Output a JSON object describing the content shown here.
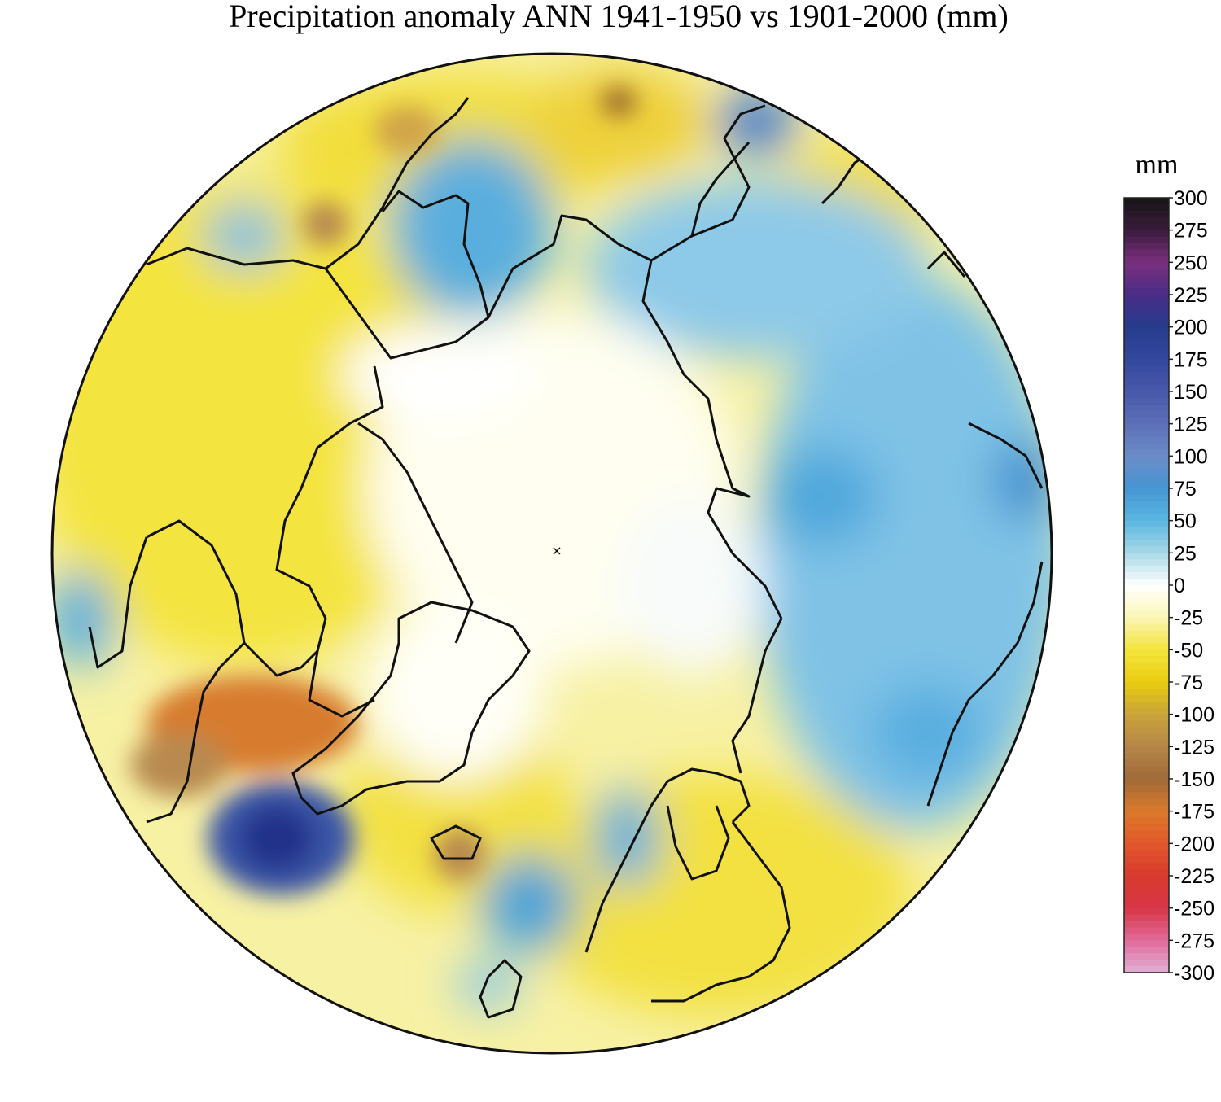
{
  "title": "Precipitation anomaly ANN 1941-1950 vs 1901-2000 (mm)",
  "colorbar": {
    "unit": "mm",
    "tick_labels": [
      "300",
      "275",
      "250",
      "225",
      "200",
      "175",
      "150",
      "125",
      "100",
      "75",
      "50",
      "25",
      "0",
      "-25",
      "-50",
      "-75",
      "-100",
      "-125",
      "-150",
      "-175",
      "-200",
      "-225",
      "-250",
      "-275",
      "-300"
    ],
    "stops": [
      {
        "v": 300,
        "c": "#151515"
      },
      {
        "v": 275,
        "c": "#3a1c3c"
      },
      {
        "v": 250,
        "c": "#7a2f7e"
      },
      {
        "v": 225,
        "c": "#4a2c86"
      },
      {
        "v": 200,
        "c": "#263c8c"
      },
      {
        "v": 175,
        "c": "#33479e"
      },
      {
        "v": 150,
        "c": "#4858aa"
      },
      {
        "v": 125,
        "c": "#5d6fb8"
      },
      {
        "v": 100,
        "c": "#6b8cc8"
      },
      {
        "v": 75,
        "c": "#4596d2"
      },
      {
        "v": 50,
        "c": "#5ab6e0"
      },
      {
        "v": 25,
        "c": "#a8d8e8"
      },
      {
        "v": 0,
        "c": "#ffffff"
      },
      {
        "v": -25,
        "c": "#fbf6b6"
      },
      {
        "v": -50,
        "c": "#f4e43c"
      },
      {
        "v": -75,
        "c": "#e8cc10"
      },
      {
        "v": -100,
        "c": "#c9a43a"
      },
      {
        "v": -125,
        "c": "#b58648"
      },
      {
        "v": -150,
        "c": "#a06a3a"
      },
      {
        "v": -175,
        "c": "#d97a2a"
      },
      {
        "v": -200,
        "c": "#e2582c"
      },
      {
        "v": -225,
        "c": "#d83a2e"
      },
      {
        "v": -250,
        "c": "#d83646"
      },
      {
        "v": -275,
        "c": "#e06a9a"
      },
      {
        "v": -300,
        "c": "#e2b0d4"
      }
    ]
  },
  "map": {
    "projection": "north polar stereographic",
    "variable": "annual precipitation anomaly",
    "period": "1941-1950",
    "baseline": "1901-2000"
  }
}
